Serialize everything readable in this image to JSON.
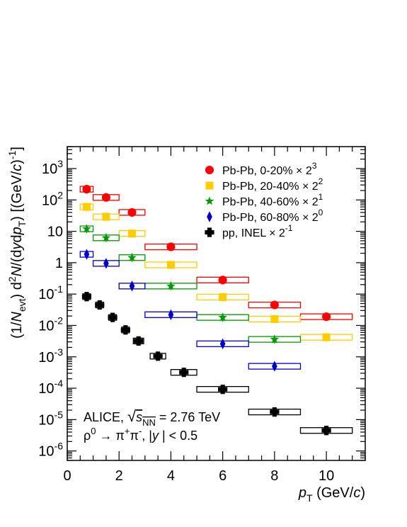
{
  "chart_data": {
    "type": "scatter",
    "x_axis": {
      "label_parts": [
        "p",
        "T",
        " (GeV/",
        "c",
        ")"
      ],
      "range": [
        0,
        11.5
      ],
      "tick_values": [
        0,
        2,
        4,
        6,
        8,
        10
      ],
      "tick_labels": [
        "0",
        "2",
        "4",
        "6",
        "8",
        "10"
      ]
    },
    "y_axis": {
      "scale": "log",
      "range": [
        5e-07,
        5000
      ],
      "label_parts": [
        "(1/",
        "N",
        "evt",
        ") d",
        "2",
        "N",
        "/(d",
        "y",
        "d",
        "p",
        "T",
        ") [(GeV/",
        "c",
        ")",
        "-1",
        "]"
      ],
      "tick_values": [
        1e-06,
        1e-05,
        0.0001,
        0.001,
        0.01,
        0.1,
        1,
        10,
        100,
        1000
      ],
      "tick_labels": [
        {
          "base": "10",
          "exp": "-6"
        },
        {
          "base": "10",
          "exp": "-5"
        },
        {
          "base": "10",
          "exp": "-4"
        },
        {
          "base": "10",
          "exp": "-3"
        },
        {
          "base": "10",
          "exp": "-2"
        },
        {
          "base": "10",
          "exp": "-1"
        },
        {
          "base": "1",
          "exp": ""
        },
        {
          "base": "10",
          "exp": ""
        },
        {
          "base": "10",
          "exp": "2"
        },
        {
          "base": "10",
          "exp": "3"
        }
      ]
    },
    "legend_position": "top-right",
    "annotation": {
      "line1": {
        "prefix": "ALICE, ",
        "sqrt_symbol": "√",
        "s": "s",
        "sub": "NN",
        "suffix": " = 2.76 TeV"
      },
      "line2": {
        "rho": "ρ",
        "rho_sup": "0",
        "arrow": " → ",
        "pi1": "π",
        "pi1_sup": "+",
        "pi2": "π",
        "pi2_sup": "-",
        "tail": ", |",
        "y": "y",
        "tail2": " | < 0.5"
      }
    },
    "series": [
      {
        "name": "Pb-Pb, 0-20%",
        "scale_text": "× 2",
        "scale_exp": "3",
        "color": "#ff0000",
        "marker": "circle",
        "points": [
          {
            "x": 0.75,
            "y": 220,
            "xlo": 0.5,
            "xhi": 1.0
          },
          {
            "x": 1.5,
            "y": 120,
            "xlo": 1.0,
            "xhi": 2.0
          },
          {
            "x": 2.5,
            "y": 40,
            "xlo": 2.0,
            "xhi": 3.0
          },
          {
            "x": 4.0,
            "y": 3.2,
            "xlo": 3.0,
            "xhi": 5.0
          },
          {
            "x": 6.0,
            "y": 0.28,
            "xlo": 5.0,
            "xhi": 7.0
          },
          {
            "x": 8.0,
            "y": 0.045,
            "xlo": 7.0,
            "xhi": 9.0
          },
          {
            "x": 10.0,
            "y": 0.019,
            "xlo": 9.0,
            "xhi": 11.0
          }
        ]
      },
      {
        "name": "Pb-Pb, 20-40%",
        "scale_text": "× 2",
        "scale_exp": "2",
        "color": "#ffcc00",
        "marker": "square",
        "points": [
          {
            "x": 0.75,
            "y": 60,
            "xlo": 0.5,
            "xhi": 1.0
          },
          {
            "x": 1.5,
            "y": 29,
            "xlo": 1.0,
            "xhi": 2.0
          },
          {
            "x": 2.5,
            "y": 8.5,
            "xlo": 2.0,
            "xhi": 3.0
          },
          {
            "x": 4.0,
            "y": 0.85,
            "xlo": 3.0,
            "xhi": 5.0
          },
          {
            "x": 6.0,
            "y": 0.08,
            "xlo": 5.0,
            "xhi": 7.0
          },
          {
            "x": 8.0,
            "y": 0.016,
            "xlo": 7.0,
            "xhi": 9.0
          },
          {
            "x": 10.0,
            "y": 0.0042,
            "xlo": 9.0,
            "xhi": 11.0
          }
        ]
      },
      {
        "name": "Pb-Pb, 40-60%",
        "scale_text": "× 2",
        "scale_exp": "1",
        "color": "#009900",
        "marker": "star",
        "points": [
          {
            "x": 0.75,
            "y": 12,
            "xlo": 0.5,
            "xhi": 1.0
          },
          {
            "x": 1.5,
            "y": 6.2,
            "xlo": 1.0,
            "xhi": 2.0
          },
          {
            "x": 2.5,
            "y": 1.45,
            "xlo": 2.0,
            "xhi": 3.0
          },
          {
            "x": 4.0,
            "y": 0.18,
            "xlo": 3.0,
            "xhi": 5.0
          },
          {
            "x": 6.0,
            "y": 0.018,
            "xlo": 5.0,
            "xhi": 7.0
          },
          {
            "x": 8.0,
            "y": 0.0036,
            "xlo": 7.0,
            "xhi": 9.0
          }
        ]
      },
      {
        "name": "Pb-Pb, 60-80%",
        "scale_text": "× 2",
        "scale_exp": "0",
        "color": "#0000cc",
        "marker": "diamond",
        "points": [
          {
            "x": 0.75,
            "y": 1.85,
            "xlo": 0.5,
            "xhi": 1.0
          },
          {
            "x": 1.5,
            "y": 0.95,
            "xlo": 1.0,
            "xhi": 2.0
          },
          {
            "x": 2.5,
            "y": 0.18,
            "xlo": 2.0,
            "xhi": 3.0
          },
          {
            "x": 4.0,
            "y": 0.022,
            "xlo": 3.0,
            "xhi": 5.0
          },
          {
            "x": 6.0,
            "y": 0.0026,
            "xlo": 5.0,
            "xhi": 7.0
          },
          {
            "x": 8.0,
            "y": 0.0005,
            "xlo": 7.0,
            "xhi": 9.0
          }
        ]
      },
      {
        "name": "pp, INEL",
        "scale_text": "× 2",
        "scale_exp": "-1",
        "color": "#000000",
        "marker": "cross",
        "points": [
          {
            "x": 0.75,
            "y": 0.083,
            "xlo": 0.6,
            "xhi": 0.9
          },
          {
            "x": 1.25,
            "y": 0.045,
            "xlo": 1.1,
            "xhi": 1.4
          },
          {
            "x": 1.75,
            "y": 0.018,
            "xlo": 1.6,
            "xhi": 1.9
          },
          {
            "x": 2.25,
            "y": 0.0072,
            "xlo": 2.1,
            "xhi": 2.4
          },
          {
            "x": 2.75,
            "y": 0.0032,
            "xlo": 2.55,
            "xhi": 2.95
          },
          {
            "x": 3.5,
            "y": 0.00105,
            "xlo": 3.2,
            "xhi": 3.8
          },
          {
            "x": 4.5,
            "y": 0.00032,
            "xlo": 4.0,
            "xhi": 5.0
          },
          {
            "x": 6.0,
            "y": 9.2e-05,
            "xlo": 5.0,
            "xhi": 7.0
          },
          {
            "x": 8.0,
            "y": 1.75e-05,
            "xlo": 7.0,
            "xhi": 9.0
          },
          {
            "x": 10.0,
            "y": 4.5e-06,
            "xlo": 9.0,
            "xhi": 11.0
          }
        ]
      }
    ]
  }
}
